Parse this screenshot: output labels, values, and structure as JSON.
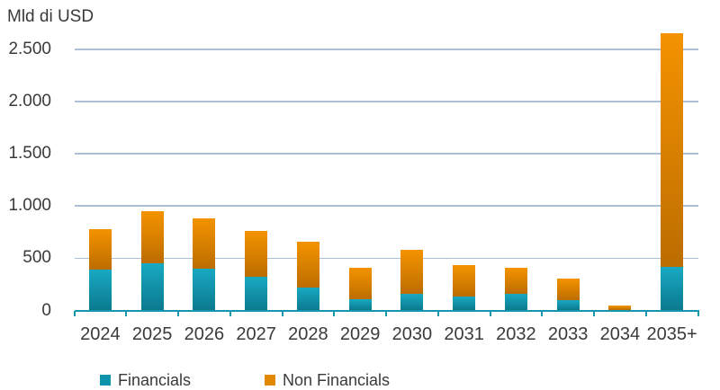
{
  "chart_data": {
    "type": "bar",
    "stacked": true,
    "title": "Mld di USD",
    "categories": [
      "2024",
      "2025",
      "2026",
      "2027",
      "2028",
      "2029",
      "2030",
      "2031",
      "2032",
      "2033",
      "2034",
      "2035+"
    ],
    "series": [
      {
        "name": "Financials",
        "color": "#0E93AC",
        "gradient_top": "#18A9C2",
        "gradient_bottom": "#0B7A90",
        "values": [
          390,
          450,
          400,
          320,
          220,
          105,
          155,
          135,
          160,
          95,
          5,
          420
        ]
      },
      {
        "name": "Non Financials",
        "color": "#E28800",
        "gradient_top": "#F49300",
        "gradient_bottom": "#BC6D00",
        "values": [
          390,
          500,
          480,
          445,
          435,
          300,
          425,
          295,
          250,
          210,
          40,
          2230
        ]
      }
    ],
    "ylabel": "Mld di USD",
    "ylim": [
      0,
      2800
    ],
    "yticks": [
      0,
      500,
      1000,
      1500,
      2000,
      2500
    ],
    "ytick_labels": [
      "0",
      "500",
      "1.000",
      "1.500",
      "2.000",
      "2.500"
    ],
    "grid": true,
    "legend_position": "bottom",
    "colors": {
      "gridline": "#ADBFD5",
      "axis": "#1496AE",
      "text": "#3A3A39",
      "background": "#FFFFFF"
    }
  }
}
